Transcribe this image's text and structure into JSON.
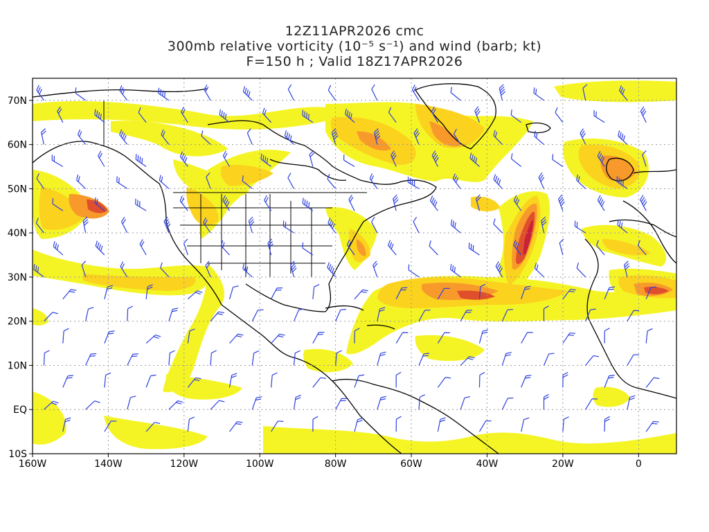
{
  "title": {
    "line1": "12Z11APR2026 cmc",
    "line2": "300mb relative vorticity (10⁻⁵ s⁻¹) and wind (barb; kt)",
    "line3": "F=150 h ; Valid 18Z17APR2026"
  },
  "map": {
    "lon_range": [
      -160,
      10
    ],
    "lat_range": [
      -10,
      75
    ],
    "x_ticks": [
      {
        "lon": -160,
        "label": "160W"
      },
      {
        "lon": -140,
        "label": "140W"
      },
      {
        "lon": -120,
        "label": "120W"
      },
      {
        "lon": -100,
        "label": "100W"
      },
      {
        "lon": -80,
        "label": "80W"
      },
      {
        "lon": -60,
        "label": "60W"
      },
      {
        "lon": -40,
        "label": "40W"
      },
      {
        "lon": -20,
        "label": "20W"
      },
      {
        "lon": 0,
        "label": "0"
      }
    ],
    "y_ticks": [
      {
        "lat": 70,
        "label": "70N"
      },
      {
        "lat": 60,
        "label": "60N"
      },
      {
        "lat": 50,
        "label": "50N"
      },
      {
        "lat": 40,
        "label": "40N"
      },
      {
        "lat": 30,
        "label": "30N"
      },
      {
        "lat": 20,
        "label": "20N"
      },
      {
        "lat": 10,
        "label": "10N"
      },
      {
        "lat": 0,
        "label": "EQ"
      },
      {
        "lat": -10,
        "label": "10S"
      }
    ],
    "grid": true,
    "colors": {
      "shade_light": "#f4f41a",
      "shade_mid": "#fbd21e",
      "shade_orange": "#f79a2b",
      "shade_red": "#e04f2c",
      "shade_max": "#c8213a",
      "barb": "#2c3fe0",
      "coast": "#000000"
    }
  }
}
